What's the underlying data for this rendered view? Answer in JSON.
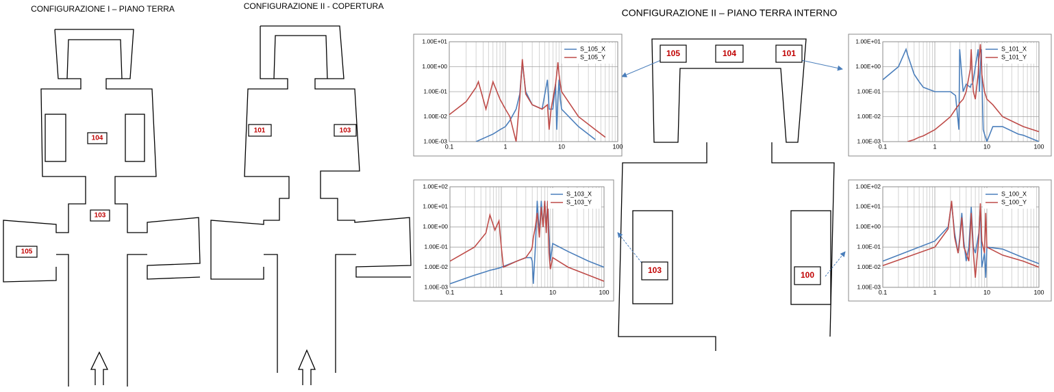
{
  "plans": [
    {
      "title": "CONFIGURAZIONE I – PIANO TERRA",
      "rooms": [
        "104",
        "103",
        "105"
      ]
    },
    {
      "title": "CONFIGURAZIONE II - COPERTURA",
      "rooms": [
        "101",
        "103"
      ]
    },
    {
      "title": "CONFIGURAZIONE II – PIANO TERRA INTERNO",
      "rooms": [
        "105",
        "104",
        "101",
        "103",
        "100"
      ]
    }
  ],
  "chart_data": [
    {
      "type": "line",
      "xscale": "log",
      "yscale": "log",
      "grid": true,
      "legend": "upper right",
      "x": [
        0.1,
        0.2,
        0.3,
        0.33,
        0.45,
        0.6,
        0.8,
        1,
        1.2,
        1.55,
        1.8,
        2,
        2.3,
        3,
        4.5,
        5.6,
        6,
        6.5,
        7,
        7.8,
        8.2,
        8.6,
        9,
        9.5,
        10,
        20,
        40,
        60,
        100
      ],
      "xlim": [
        0.1,
        100
      ],
      "xticks": [
        0.1,
        1,
        10,
        100
      ],
      "ylim": [
        0.001,
        10
      ],
      "yticks": [
        {
          "value": 0.001,
          "label": "1.00E-03"
        },
        {
          "value": 0.01,
          "label": "1.00E-02"
        },
        {
          "value": 0.1,
          "label": "1.00E-01"
        },
        {
          "value": 1,
          "label": "1.00E+00"
        },
        {
          "value": 10,
          "label": "1.00E+01"
        }
      ],
      "series": [
        {
          "name": "S_105_X",
          "color": "#4a7ebb",
          "values": [
            null,
            null,
            0.001,
            0.0011,
            0.0015,
            0.002,
            0.003,
            0.004,
            0.007,
            0.02,
            0.08,
            1.5,
            0.1,
            0.03,
            0.02,
            0.3,
            0.02,
            0.02,
            0.02,
            0.2,
            0.003,
            0.05,
            0.3,
            0.05,
            0.02,
            0.004,
            0.0012,
            null,
            null
          ]
        },
        {
          "name": "S_105_Y",
          "color": "#be4b48",
          "values": [
            0.012,
            0.04,
            0.15,
            0.25,
            0.02,
            0.25,
            0.05,
            0.02,
            0.01,
            0.001,
            0.05,
            2,
            0.08,
            0.03,
            0.02,
            0.03,
            0.003,
            0.02,
            0.05,
            0.2,
            0.5,
            1.5,
            0.5,
            0.2,
            0.1,
            0.01,
            0.003,
            0.0015,
            null
          ]
        }
      ]
    },
    {
      "type": "line",
      "xscale": "log",
      "yscale": "log",
      "grid": true,
      "legend": "upper right",
      "x": [
        0.1,
        0.2,
        0.28,
        0.3,
        0.4,
        0.5,
        0.6,
        1,
        1.5,
        2,
        2.5,
        2.9,
        3,
        3.5,
        4,
        4.8,
        5,
        5.3,
        5.5,
        6,
        6.8,
        7,
        7.2,
        7.5,
        7.8,
        8,
        8.5,
        9,
        10,
        13,
        20,
        40,
        50,
        100
      ],
      "xlim": [
        0.1,
        100
      ],
      "xticks": [
        0.1,
        1,
        10,
        100
      ],
      "ylim": [
        0.001,
        10
      ],
      "yticks": [
        {
          "value": 0.001,
          "label": "1.00E-03"
        },
        {
          "value": 0.01,
          "label": "1.00E-02"
        },
        {
          "value": 0.1,
          "label": "1.00E-01"
        },
        {
          "value": 1,
          "label": "1.00E+00"
        },
        {
          "value": 10,
          "label": "1.00E+01"
        }
      ],
      "series": [
        {
          "name": "S_101_X",
          "color": "#4a7ebb",
          "values": [
            0.3,
            1,
            5,
            3,
            0.5,
            0.25,
            0.15,
            0.1,
            0.1,
            0.1,
            0.07,
            0.003,
            5,
            0.1,
            0.2,
            0.15,
            0.2,
            0.2,
            0.3,
            1,
            5,
            0.5,
            0.1,
            1,
            5,
            0.5,
            0.003,
            0.002,
            0.001,
            0.004,
            0.004,
            0.002,
            0.0018,
            0.001
          ]
        },
        {
          "name": "S_101_Y",
          "color": "#be4b48",
          "values": [
            null,
            null,
            null,
            0.001,
            0.0012,
            0.0015,
            0.0017,
            0.003,
            0.006,
            0.01,
            0.02,
            0.03,
            0.035,
            0.05,
            0.1,
            0.8,
            5,
            0.3,
            0.1,
            0.05,
            0.5,
            2,
            3,
            8,
            2,
            0.5,
            0.2,
            0.1,
            0.05,
            0.03,
            0.01,
            0.005,
            0.004,
            0.0025
          ]
        }
      ]
    },
    {
      "type": "line",
      "xscale": "log",
      "yscale": "log",
      "grid": true,
      "legend": "upper right",
      "x": [
        0.1,
        0.3,
        0.5,
        0.6,
        0.75,
        0.9,
        1,
        1.1,
        2,
        3,
        3.8,
        4,
        4.2,
        4.6,
        5,
        5.5,
        6,
        6.5,
        7,
        7.5,
        8,
        8.5,
        9,
        10,
        20,
        50,
        100
      ],
      "xlim": [
        0.1,
        100
      ],
      "xticks": [
        0.1,
        1,
        10,
        100
      ],
      "ylim": [
        0.001,
        100
      ],
      "yticks": [
        {
          "value": 0.001,
          "label": "1.00E-03"
        },
        {
          "value": 0.01,
          "label": "1.00E-02"
        },
        {
          "value": 0.1,
          "label": "1.00E-01"
        },
        {
          "value": 1,
          "label": "1.00E+00"
        },
        {
          "value": 10,
          "label": "1.00E+01"
        },
        {
          "value": 100,
          "label": "1.00E+02"
        }
      ],
      "series": [
        {
          "name": "S_103_X",
          "color": "#4a7ebb",
          "values": [
            0.0015,
            0.004,
            0.006,
            0.007,
            0.008,
            0.009,
            0.01,
            0.011,
            0.02,
            0.03,
            0.03,
            0.02,
            0.0015,
            0.1,
            20,
            0.5,
            20,
            1,
            20,
            1,
            20,
            0.5,
            0.02,
            0.15,
            0.06,
            0.02,
            0.01
          ]
        },
        {
          "name": "S_103_Y",
          "color": "#be4b48",
          "values": [
            0.02,
            0.1,
            0.5,
            4,
            0.7,
            2,
            0.1,
            0.01,
            0.02,
            0.03,
            0.07,
            0.1,
            0.3,
            1,
            5,
            0.3,
            10,
            1,
            20,
            0.5,
            20,
            0.05,
            0.008,
            0.03,
            0.01,
            0.004,
            0.002
          ]
        }
      ]
    },
    {
      "type": "line",
      "xscale": "log",
      "yscale": "log",
      "grid": true,
      "legend": "upper right",
      "x": [
        0.1,
        1,
        1.8,
        2.1,
        2.4,
        2.8,
        3,
        3.3,
        3.6,
        4,
        4.5,
        5,
        5.5,
        6,
        7,
        7.5,
        8,
        9,
        9.5,
        10,
        20,
        50,
        100
      ],
      "xlim": [
        0.1,
        100
      ],
      "xticks": [
        0.1,
        1,
        10,
        100
      ],
      "ylim": [
        0.001,
        100
      ],
      "yticks": [
        {
          "value": 0.001,
          "label": "1.00E-03"
        },
        {
          "value": 0.01,
          "label": "1.00E-02"
        },
        {
          "value": 0.1,
          "label": "1.00E-01"
        },
        {
          "value": 1,
          "label": "1.00E+00"
        },
        {
          "value": 10,
          "label": "1.00E+01"
        },
        {
          "value": 100,
          "label": "1.00E+02"
        }
      ],
      "series": [
        {
          "name": "S_100_X",
          "color": "#4a7ebb",
          "values": [
            0.02,
            0.2,
            1,
            15,
            0.5,
            0.05,
            0.3,
            5,
            0.2,
            0.02,
            0.1,
            10,
            0.1,
            0.05,
            0.5,
            10,
            0.01,
            0.05,
            0.003,
            0.1,
            0.08,
            0.03,
            0.015
          ]
        },
        {
          "name": "S_100_Y",
          "color": "#be4b48",
          "values": [
            0.012,
            0.1,
            0.8,
            20,
            0.3,
            0.05,
            0.2,
            3,
            0.1,
            0.05,
            0.02,
            5,
            0.05,
            0.003,
            0.3,
            15,
            0.2,
            0.05,
            5,
            0.1,
            0.04,
            0.02,
            0.01
          ]
        }
      ]
    }
  ]
}
